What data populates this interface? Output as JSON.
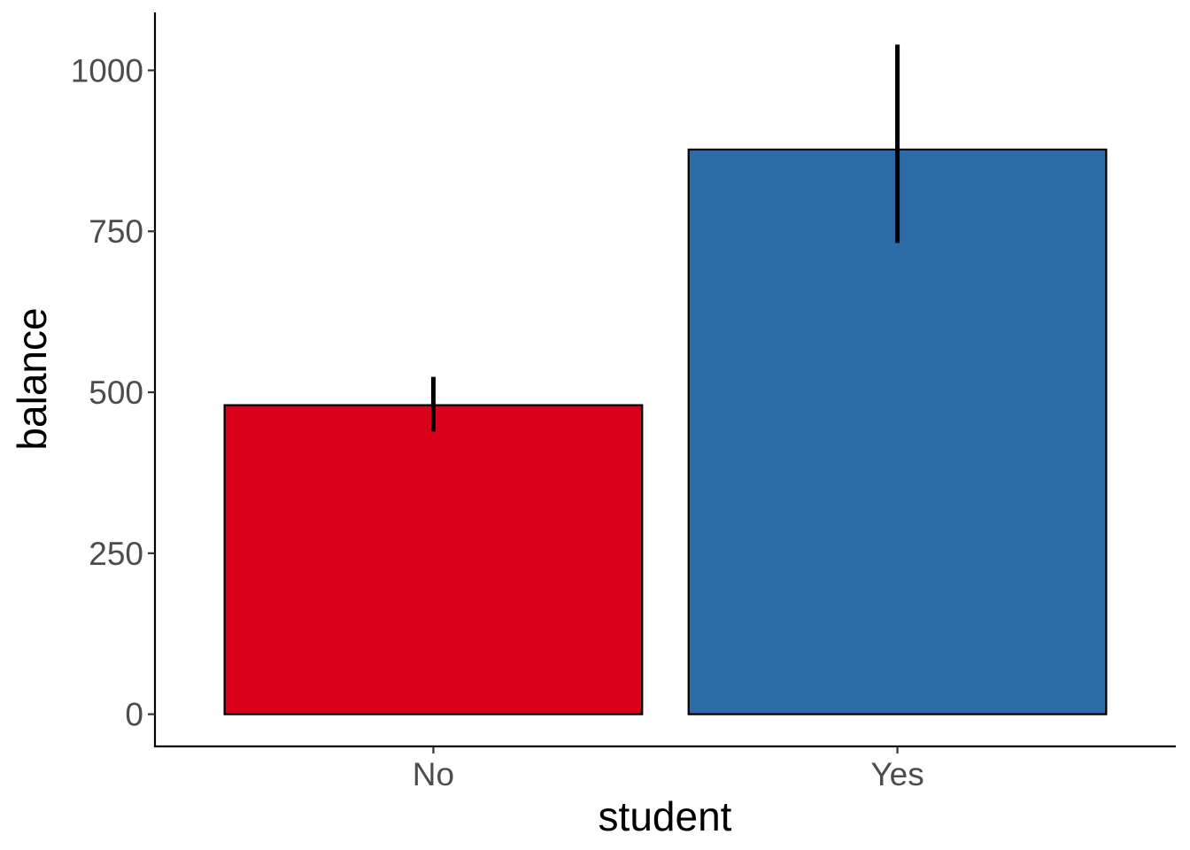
{
  "chart_data": {
    "type": "bar",
    "xlabel": "student",
    "ylabel": "balance",
    "categories": [
      "No",
      "Yes"
    ],
    "values": [
      480,
      877
    ],
    "error_low": [
      439,
      732
    ],
    "error_high": [
      524,
      1040
    ],
    "colors": [
      "#DA0019",
      "#2D6AA8"
    ],
    "ylim": [
      -50,
      1090
    ],
    "yticks": [
      0,
      250,
      500,
      750,
      1000
    ],
    "ytick_labels": [
      "0",
      "250",
      "500",
      "750",
      "1000"
    ],
    "grid": false,
    "legend": "none"
  }
}
